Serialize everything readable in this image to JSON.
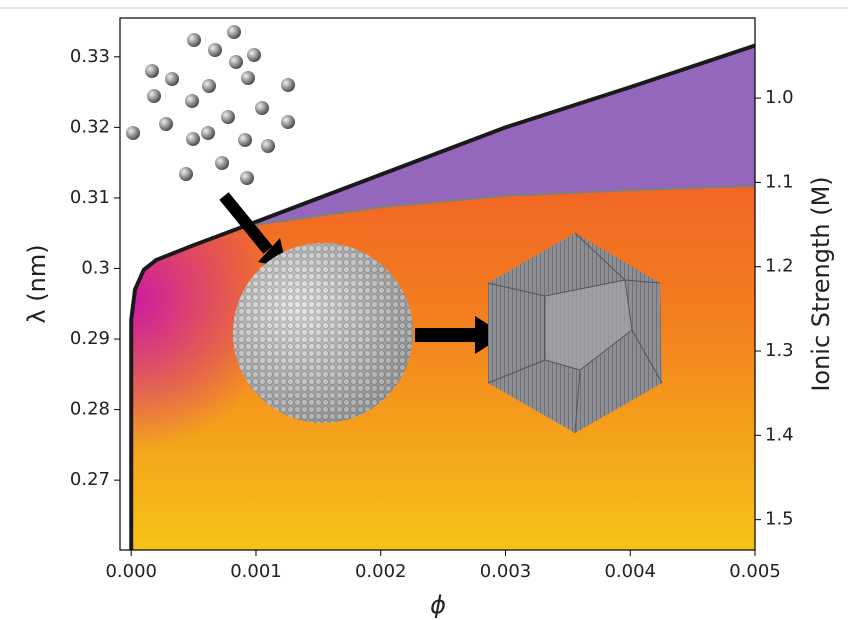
{
  "chart_data": {
    "type": "line",
    "xlabel": "ϕ",
    "ylabel": "λ (nm)",
    "y2label": "Ionic Strength (M)",
    "xlim": [
      -9e-05,
      0.005
    ],
    "ylim": [
      0.2601,
      0.3355
    ],
    "y2lim": [
      1.536,
      0.905
    ],
    "xticks": [
      {
        "value": 0,
        "label": "0.000"
      },
      {
        "value": 0.001,
        "label": "0.001"
      },
      {
        "value": 0.002,
        "label": "0.002"
      },
      {
        "value": 0.003,
        "label": "0.003"
      },
      {
        "value": 0.004,
        "label": "0.004"
      },
      {
        "value": 0.005,
        "label": "0.005"
      }
    ],
    "yticks": [
      0.27,
      0.28,
      0.29,
      0.3,
      0.31,
      0.32,
      0.33
    ],
    "y2ticks": [
      {
        "value": 1.0,
        "label": "1.0"
      },
      1.1,
      1.2,
      1.3,
      1.4,
      1.5
    ],
    "series": [
      {
        "color": "#1a1a1a",
        "x": [
          0,
          0,
          3e-05,
          0.0001,
          0.0002,
          0.0005,
          0.001,
          0.002,
          0.003,
          0.004,
          0.005
        ],
        "values": [
          0.2601,
          0.2927,
          0.297,
          0.2998,
          0.3012,
          0.3033,
          0.3066,
          0.3133,
          0.32,
          0.3257,
          0.3316
        ]
      },
      {
        "color": "#7f7f7f",
        "fill": "#9467bd",
        "x": [
          0.0009,
          0.001,
          0.002,
          0.003,
          0.004,
          0.005
        ],
        "values": [
          0.3059,
          0.3062,
          0.3087,
          0.3103,
          0.3111,
          0.3117
        ]
      }
    ]
  }
}
